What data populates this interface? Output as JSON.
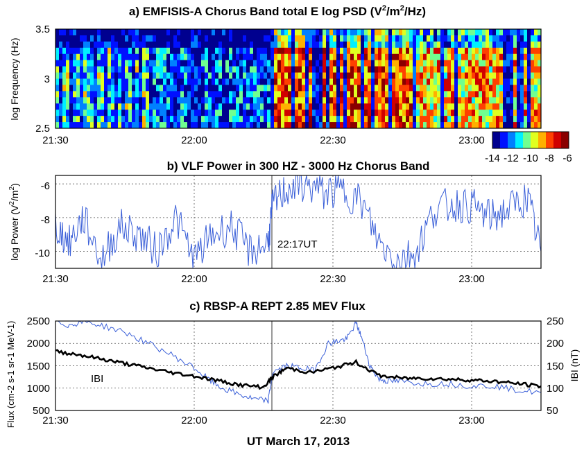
{
  "figure_caption": "UT  March 17, 2013",
  "colors": {
    "series_blue": "#3a5fd8",
    "series_black": "#000000",
    "grid": "#555555",
    "colormap": [
      "#00008f",
      "#0010ff",
      "#0080ff",
      "#00f0ff",
      "#70ff90",
      "#e0ff20",
      "#ffb000",
      "#ff4000",
      "#d00000",
      "#8a0000"
    ]
  },
  "chart_data": [
    {
      "type": "heatmap",
      "title_prefix": "a)  EMFISIS-A Chorus Band total E    log PSD (V",
      "title_sup": "2",
      "title_mid": "/m",
      "title_sup2": "2",
      "title_suffix": "/Hz)",
      "ylabel": "log Frequency (Hz)",
      "xlim_minutes": [
        0,
        105
      ],
      "ylim": [
        2.5,
        3.5
      ],
      "y_ticks": [
        "2.5",
        "3",
        "3.5"
      ],
      "x_ticks": [
        "21:30",
        "22:00",
        "22:30",
        "23:00"
      ],
      "colorbar": {
        "range": [
          -14,
          -6
        ],
        "tick_labels": [
          "-14",
          "-12",
          "-10",
          "-8",
          "-6"
        ]
      },
      "intensity_by_period": [
        {
          "from": "21:30",
          "to": "21:50",
          "typical_log_psd": -11
        },
        {
          "from": "21:50",
          "to": "22:17",
          "typical_log_psd": -12
        },
        {
          "from": "22:17",
          "to": "22:47",
          "typical_log_psd": -8
        },
        {
          "from": "22:47",
          "to": "23:13",
          "typical_log_psd": -9
        }
      ]
    },
    {
      "type": "line",
      "title": "b)  VLF Power in 300 HZ - 3000 Hz Chorus Band",
      "ylabel_prefix": "log Power (V",
      "ylabel_sup": "2",
      "ylabel_mid": "/m",
      "ylabel_sup2": "2",
      "ylabel_suffix": ")",
      "ylim": [
        -11,
        -5.5
      ],
      "y_ticks": [
        "-6",
        "-8",
        "-10"
      ],
      "x_ticks": [
        "21:30",
        "22:00",
        "22:30",
        "23:00"
      ],
      "annotation": "22:17UT",
      "marker_time": "22:17",
      "series": [
        {
          "x_minutes": [
            0,
            3,
            6,
            10,
            14,
            18,
            22,
            26,
            30,
            34,
            38,
            42,
            46,
            47,
            50,
            54,
            58,
            62,
            66,
            70,
            74,
            78,
            82,
            86,
            90,
            94,
            98,
            102,
            105
          ],
          "values": [
            -8.5,
            -9.5,
            -8.0,
            -10.5,
            -8.5,
            -9.0,
            -10.0,
            -8.0,
            -10.5,
            -9.0,
            -8.5,
            -10.0,
            -9.5,
            -7.2,
            -6.3,
            -6.0,
            -6.5,
            -6.4,
            -7.0,
            -9.5,
            -10.5,
            -10.0,
            -7.5,
            -7.2,
            -7.3,
            -8.0,
            -7.5,
            -6.8,
            -10.0
          ]
        }
      ]
    },
    {
      "type": "line",
      "title": "c)  RBSP-A REPT 2.85 MEV Flux",
      "ylabel_left": "Flux (cm-2 s-1 sr-1 MeV-1)",
      "ylabel_right": "IBI (nT)",
      "ylim_left": [
        500,
        2500
      ],
      "ylim_right": [
        50,
        250
      ],
      "y_ticks_left": [
        "500",
        "1000",
        "1500",
        "2000",
        "2500"
      ],
      "y_ticks_right": [
        "50",
        "100",
        "150",
        "200",
        "250"
      ],
      "x_ticks": [
        "21:30",
        "22:00",
        "22:30",
        "23:00"
      ],
      "annotation": "IBI",
      "series": [
        {
          "name": "IBI",
          "axis": "right",
          "x_minutes": [
            0,
            5,
            10,
            15,
            20,
            25,
            30,
            35,
            40,
            45,
            47,
            50,
            55,
            60,
            65,
            70,
            75,
            80,
            85,
            90,
            95,
            100,
            105
          ],
          "values": [
            182,
            175,
            165,
            155,
            145,
            135,
            127,
            117,
            107,
            102,
            125,
            145,
            135,
            145,
            158,
            128,
            122,
            122,
            120,
            118,
            115,
            110,
            104
          ]
        },
        {
          "name": "Flux",
          "axis": "left",
          "x_minutes": [
            0,
            3,
            6,
            10,
            15,
            20,
            25,
            30,
            33,
            36,
            40,
            43,
            46,
            47,
            50,
            53,
            56,
            59,
            61,
            63,
            65,
            66,
            68,
            70,
            72,
            75,
            80,
            85,
            90,
            95,
            100,
            105
          ],
          "values": [
            2500,
            2400,
            2500,
            2400,
            2250,
            2000,
            1750,
            1450,
            1200,
            1000,
            850,
            750,
            720,
            1350,
            1500,
            1450,
            1400,
            2000,
            2050,
            2100,
            2450,
            2200,
            1500,
            1200,
            1150,
            1150,
            1100,
            1100,
            1050,
            1050,
            950,
            900
          ]
        }
      ]
    }
  ]
}
